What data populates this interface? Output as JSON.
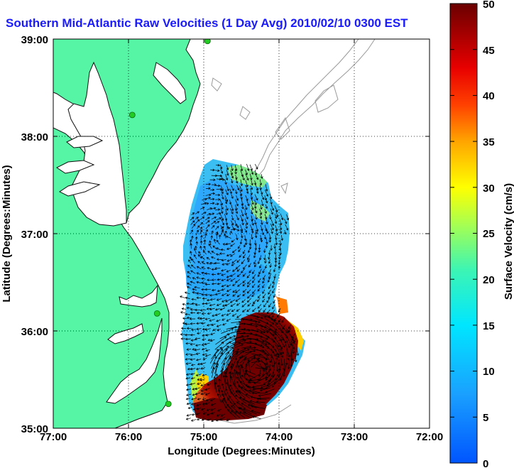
{
  "title": "Southern Mid-Atlantic Raw Velocities (1 Day Avg) 2010/02/10 0300 EST",
  "x_axis": {
    "label": "Longitude (Degrees:Minutes)",
    "ticks": [
      "77:00",
      "76:00",
      "75:00",
      "74:00",
      "73:00",
      "72:00"
    ]
  },
  "y_axis": {
    "label": "Latitude (Degrees:Minutes)",
    "ticks": [
      "39:00",
      "38:00",
      "37:00",
      "36:00",
      "35:00"
    ]
  },
  "colorbar": {
    "label": "Surface Velocity (cm/s)",
    "ticks": [
      "50",
      "45",
      "40",
      "35",
      "30",
      "25",
      "20",
      "15",
      "10",
      "5",
      "0"
    ],
    "min": 0,
    "max": 50,
    "colormap": "jet"
  },
  "map": {
    "lon_range": [
      -77,
      -72
    ],
    "lat_range": [
      35,
      39
    ],
    "grid": true,
    "land_color": "#55f5a5",
    "water_color": "#ffffff",
    "bathymetry_color": "#9a9a9a",
    "station_color": "#22cc22",
    "stations": [
      {
        "lon": -74.95,
        "lat": 38.98
      },
      {
        "lon": -75.95,
        "lat": 38.22
      },
      {
        "lon": -75.62,
        "lat": 36.18
      },
      {
        "lon": -75.47,
        "lat": 35.25
      }
    ]
  }
}
